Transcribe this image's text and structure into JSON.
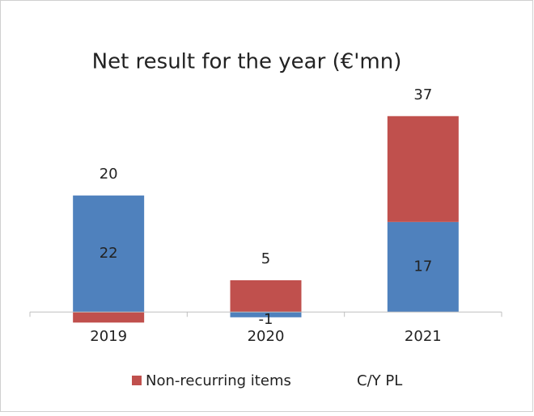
{
  "chart_data": {
    "type": "stacked_bar",
    "title": "Net result for the year (€'mn)",
    "categories": [
      "2019",
      "2020",
      "2021"
    ],
    "series": [
      {
        "name": "C/Y PL",
        "color": "#4f81bd",
        "values": [
          22,
          -1,
          17
        ]
      },
      {
        "name": "Non-recurring items",
        "color": "#c0504d",
        "values": [
          -2,
          6,
          20
        ]
      }
    ],
    "totals": [
      20,
      5,
      37
    ],
    "ylim": [
      -5,
      42
    ]
  }
}
